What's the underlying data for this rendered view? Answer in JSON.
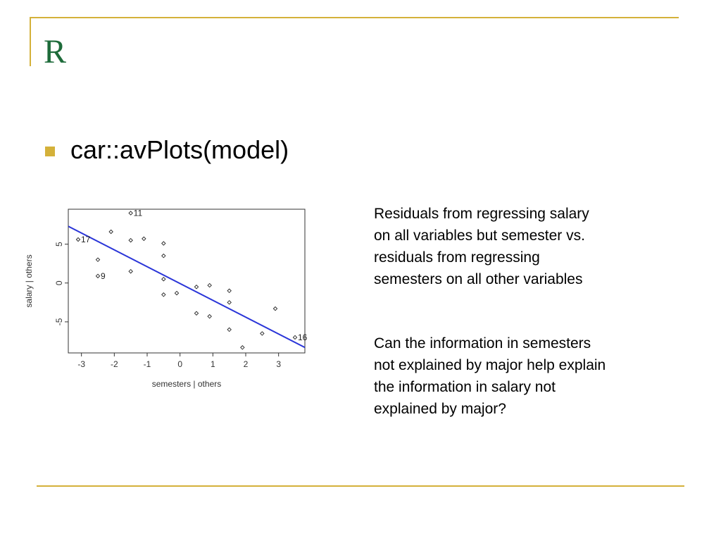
{
  "slide": {
    "title": "R",
    "bullet": "car::avPlots(model)",
    "text_block_1": "Residuals from regressing salary on all variables but semester vs. residuals from regressing semesters on all other variables",
    "text_block_2": "Can the information in semesters not explained by major help explain the information in salary not explained by major?",
    "colors": {
      "title": "#1e6b3a",
      "accent": "#d4b13a",
      "fit_line": "#2a35d8"
    }
  },
  "chart_data": {
    "type": "scatter",
    "xlabel": "semesters | others",
    "ylabel": "salary  | others",
    "xlim": [
      -3.4,
      3.8
    ],
    "ylim": [
      -9,
      9.5
    ],
    "xticks": [
      -3,
      -2,
      -1,
      0,
      1,
      2,
      3
    ],
    "yticks": [
      -5,
      0,
      5
    ],
    "grid": false,
    "points": [
      {
        "x": -3.1,
        "y": 5.6,
        "label": "17"
      },
      {
        "x": -1.5,
        "y": 9.0,
        "label": "11"
      },
      {
        "x": -2.5,
        "y": 0.9,
        "label": "9"
      },
      {
        "x": 3.5,
        "y": -7.0,
        "label": "16"
      },
      {
        "x": -2.5,
        "y": 3.0,
        "label": ""
      },
      {
        "x": -2.1,
        "y": 6.6,
        "label": ""
      },
      {
        "x": -1.5,
        "y": 5.5,
        "label": ""
      },
      {
        "x": -1.5,
        "y": 1.5,
        "label": ""
      },
      {
        "x": -1.1,
        "y": 5.7,
        "label": ""
      },
      {
        "x": -0.5,
        "y": 5.1,
        "label": ""
      },
      {
        "x": -0.5,
        "y": 3.5,
        "label": ""
      },
      {
        "x": -0.5,
        "y": 0.5,
        "label": ""
      },
      {
        "x": -0.5,
        "y": -1.5,
        "label": ""
      },
      {
        "x": -0.1,
        "y": -1.3,
        "label": ""
      },
      {
        "x": 0.5,
        "y": -0.5,
        "label": ""
      },
      {
        "x": 0.5,
        "y": -3.9,
        "label": ""
      },
      {
        "x": 0.9,
        "y": -0.3,
        "label": ""
      },
      {
        "x": 0.9,
        "y": -4.3,
        "label": ""
      },
      {
        "x": 1.5,
        "y": -1.0,
        "label": ""
      },
      {
        "x": 1.5,
        "y": -2.5,
        "label": ""
      },
      {
        "x": 1.5,
        "y": -6.0,
        "label": ""
      },
      {
        "x": 1.9,
        "y": -8.3,
        "label": ""
      },
      {
        "x": 2.5,
        "y": -6.5,
        "label": ""
      },
      {
        "x": 2.9,
        "y": -3.3,
        "label": ""
      }
    ],
    "fit_line": {
      "x": [
        -3.4,
        3.8
      ],
      "y": [
        7.3,
        -8.3
      ]
    }
  }
}
